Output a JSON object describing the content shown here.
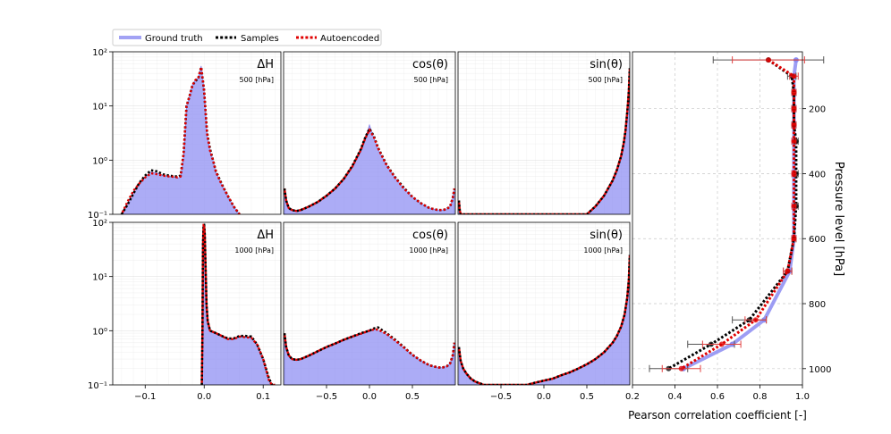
{
  "legend": {
    "placement": "top-left",
    "items": [
      {
        "label": "Ground truth",
        "color": "#8080f0",
        "style": "solid"
      },
      {
        "label": "Samples",
        "color": "#000000",
        "style": "dotted"
      },
      {
        "label": "Autoencoded",
        "color": "#e00000",
        "style": "dotted"
      }
    ]
  },
  "colors": {
    "ground_truth": "#8c8cf2",
    "samples": "#000000",
    "autoencoded": "#e00000",
    "grid": "#d9d9d9"
  },
  "chart_data": [
    {
      "type": "area",
      "panel": "r0c0",
      "label": "ΔH",
      "level_label": "500 [hPa]",
      "yscale": "log",
      "ylim": [
        0.1,
        100
      ],
      "xlim": [
        -0.155,
        0.13
      ],
      "xticks": [],
      "yticks": [
        {
          "v": 0.1,
          "t": "10⁻¹"
        },
        {
          "v": 1,
          "t": "10⁰"
        },
        {
          "v": 10,
          "t": "10¹"
        },
        {
          "v": 100,
          "t": "10²"
        }
      ],
      "x": [
        -0.14,
        -0.13,
        -0.12,
        -0.11,
        -0.1,
        -0.09,
        -0.08,
        -0.07,
        -0.06,
        -0.05,
        -0.045,
        -0.04,
        -0.035,
        -0.03,
        -0.025,
        -0.02,
        -0.015,
        -0.01,
        -0.005,
        0.0,
        0.005,
        0.01,
        0.015,
        0.02,
        0.03,
        0.04,
        0.05,
        0.06
      ],
      "ground_truth": [
        0.1,
        0.16,
        0.26,
        0.38,
        0.5,
        0.6,
        0.58,
        0.52,
        0.5,
        0.48,
        0.47,
        0.48,
        1.2,
        10,
        15,
        25,
        30,
        33,
        55,
        20,
        3,
        1.5,
        1.0,
        0.6,
        0.35,
        0.22,
        0.14,
        0.1
      ],
      "samples": [
        0.1,
        0.15,
        0.24,
        0.38,
        0.52,
        0.65,
        0.62,
        0.55,
        0.52,
        0.5,
        0.5,
        0.52,
        1.3,
        10,
        15,
        24,
        29,
        32,
        52,
        19,
        3.2,
        1.6,
        1.0,
        0.62,
        0.36,
        0.22,
        0.14,
        0.1
      ],
      "autoencoded": [
        0.1,
        0.17,
        0.27,
        0.37,
        0.48,
        0.57,
        0.55,
        0.52,
        0.5,
        0.49,
        0.48,
        0.5,
        1.3,
        10,
        15,
        24,
        30,
        33,
        52,
        19,
        3,
        1.5,
        1.0,
        0.6,
        0.35,
        0.22,
        0.14,
        0.1
      ]
    },
    {
      "type": "area",
      "panel": "r0c1",
      "label": "cos(θ)",
      "level_label": "500 [hPa]",
      "yscale": "log",
      "ylim": [
        0.1,
        100
      ],
      "xlim": [
        -1,
        1
      ],
      "xticks": [],
      "yticks": [],
      "x": [
        -0.99,
        -0.97,
        -0.94,
        -0.9,
        -0.85,
        -0.8,
        -0.7,
        -0.6,
        -0.5,
        -0.4,
        -0.3,
        -0.2,
        -0.1,
        -0.05,
        0.0,
        0.05,
        0.1,
        0.2,
        0.3,
        0.4,
        0.5,
        0.6,
        0.7,
        0.8,
        0.85,
        0.9,
        0.94,
        0.97,
        0.99
      ],
      "ground_truth": [
        0.28,
        0.17,
        0.13,
        0.12,
        0.115,
        0.12,
        0.14,
        0.17,
        0.22,
        0.3,
        0.45,
        0.75,
        1.5,
        2.5,
        4.5,
        2.6,
        1.6,
        0.8,
        0.47,
        0.3,
        0.21,
        0.16,
        0.13,
        0.12,
        0.12,
        0.125,
        0.14,
        0.2,
        0.3
      ],
      "samples": [
        0.3,
        0.18,
        0.13,
        0.12,
        0.115,
        0.12,
        0.14,
        0.17,
        0.22,
        0.3,
        0.45,
        0.78,
        1.6,
        2.6,
        3.8,
        2.8,
        1.7,
        0.82,
        0.48,
        0.31,
        0.21,
        0.16,
        0.13,
        0.12,
        0.12,
        0.125,
        0.14,
        0.2,
        0.3
      ],
      "autoencoded": [
        0.3,
        0.18,
        0.13,
        0.12,
        0.115,
        0.12,
        0.14,
        0.17,
        0.22,
        0.3,
        0.45,
        0.76,
        1.55,
        2.5,
        3.6,
        2.7,
        1.65,
        0.8,
        0.47,
        0.3,
        0.21,
        0.16,
        0.13,
        0.12,
        0.12,
        0.125,
        0.14,
        0.2,
        0.3
      ]
    },
    {
      "type": "area",
      "panel": "r0c2",
      "label": "sin(θ)",
      "level_label": "500 [hPa]",
      "yscale": "log",
      "ylim": [
        0.1,
        100
      ],
      "xlim": [
        -1,
        1
      ],
      "xticks": [],
      "yticks": [],
      "x": [
        -0.99,
        -0.98,
        -0.97,
        0.5,
        0.6,
        0.7,
        0.8,
        0.85,
        0.9,
        0.93,
        0.95,
        0.97,
        0.98,
        0.99,
        1.0
      ],
      "ground_truth": [
        0.18,
        0.12,
        0.1,
        0.1,
        0.14,
        0.22,
        0.42,
        0.66,
        1.2,
        2.1,
        3.5,
        7.5,
        12,
        20,
        50
      ],
      "samples": [
        0.18,
        0.12,
        0.1,
        0.1,
        0.14,
        0.22,
        0.42,
        0.66,
        1.2,
        2.1,
        3.5,
        7.5,
        12,
        20,
        50
      ],
      "autoencoded": [
        0.18,
        0.12,
        0.1,
        0.1,
        0.14,
        0.22,
        0.42,
        0.66,
        1.2,
        2.1,
        3.5,
        7.5,
        12,
        20,
        50
      ]
    },
    {
      "type": "area",
      "panel": "r1c0",
      "label": "ΔH",
      "level_label": "1000 [hPa]",
      "yscale": "log",
      "ylim": [
        0.1,
        100
      ],
      "xlim": [
        -0.155,
        0.13
      ],
      "xticks": [
        {
          "v": -0.1,
          "t": "−0.1"
        },
        {
          "v": 0.0,
          "t": "0.0"
        },
        {
          "v": 0.1,
          "t": "0.1"
        }
      ],
      "yticks": [
        {
          "v": 0.1,
          "t": "10⁻¹"
        },
        {
          "v": 1,
          "t": "10⁰"
        },
        {
          "v": 10,
          "t": "10¹"
        },
        {
          "v": 100,
          "t": "10²"
        }
      ],
      "x": [
        -0.004,
        -0.003,
        -0.002,
        -0.001,
        0.0,
        0.001,
        0.002,
        0.004,
        0.006,
        0.01,
        0.02,
        0.03,
        0.04,
        0.05,
        0.06,
        0.07,
        0.08,
        0.09,
        0.1,
        0.11,
        0.115,
        0.12
      ],
      "ground_truth": [
        0.1,
        1.0,
        40,
        90,
        90,
        60,
        20,
        3,
        1.5,
        1.0,
        0.9,
        0.8,
        0.7,
        0.7,
        0.8,
        0.75,
        0.75,
        0.55,
        0.3,
        0.12,
        0.1,
        0.1
      ],
      "samples": [
        0.1,
        0.9,
        40,
        90,
        90,
        60,
        20,
        3,
        1.5,
        1.0,
        0.9,
        0.8,
        0.72,
        0.72,
        0.8,
        0.8,
        0.78,
        0.55,
        0.3,
        0.13,
        0.1,
        0.1
      ],
      "autoencoded": [
        0.1,
        0.9,
        40,
        90,
        90,
        60,
        20,
        3,
        1.5,
        1.0,
        0.9,
        0.8,
        0.7,
        0.7,
        0.78,
        0.76,
        0.74,
        0.55,
        0.3,
        0.12,
        0.1,
        0.1
      ]
    },
    {
      "type": "area",
      "panel": "r1c1",
      "label": "cos(θ)",
      "level_label": "1000 [hPa]",
      "yscale": "log",
      "ylim": [
        0.1,
        100
      ],
      "xlim": [
        -1,
        1
      ],
      "xticks": [
        {
          "v": -0.5,
          "t": "−0.5"
        },
        {
          "v": 0.0,
          "t": "0.0"
        },
        {
          "v": 0.5,
          "t": "0.5"
        }
      ],
      "yticks": [],
      "x": [
        -0.99,
        -0.97,
        -0.94,
        -0.9,
        -0.85,
        -0.8,
        -0.7,
        -0.6,
        -0.5,
        -0.4,
        -0.3,
        -0.2,
        -0.1,
        0.0,
        0.05,
        0.1,
        0.2,
        0.3,
        0.4,
        0.5,
        0.6,
        0.7,
        0.8,
        0.85,
        0.9,
        0.94,
        0.97,
        0.99
      ],
      "ground_truth": [
        0.9,
        0.5,
        0.35,
        0.3,
        0.29,
        0.3,
        0.35,
        0.42,
        0.5,
        0.58,
        0.68,
        0.78,
        0.88,
        1.05,
        1.05,
        1.0,
        0.85,
        0.65,
        0.48,
        0.36,
        0.28,
        0.23,
        0.21,
        0.21,
        0.22,
        0.25,
        0.35,
        0.6
      ],
      "samples": [
        0.9,
        0.5,
        0.35,
        0.3,
        0.29,
        0.3,
        0.35,
        0.42,
        0.5,
        0.58,
        0.68,
        0.78,
        0.9,
        1.0,
        1.1,
        1.15,
        0.9,
        0.68,
        0.5,
        0.36,
        0.28,
        0.23,
        0.21,
        0.21,
        0.22,
        0.25,
        0.35,
        0.6
      ],
      "autoencoded": [
        0.9,
        0.5,
        0.35,
        0.3,
        0.29,
        0.3,
        0.35,
        0.42,
        0.5,
        0.58,
        0.68,
        0.78,
        0.88,
        1.0,
        1.05,
        1.05,
        0.87,
        0.66,
        0.49,
        0.36,
        0.28,
        0.23,
        0.21,
        0.21,
        0.22,
        0.25,
        0.35,
        0.6
      ]
    },
    {
      "type": "area",
      "panel": "r1c2",
      "label": "sin(θ)",
      "level_label": "1000 [hPa]",
      "yscale": "log",
      "ylim": [
        0.1,
        100
      ],
      "xlim": [
        -1,
        1
      ],
      "xticks": [
        {
          "v": -0.5,
          "t": "−0.5"
        },
        {
          "v": 0.0,
          "t": "0.0"
        },
        {
          "v": 0.5,
          "t": "0.5"
        }
      ],
      "yticks": [],
      "x": [
        -0.99,
        -0.97,
        -0.94,
        -0.9,
        -0.85,
        -0.8,
        -0.7,
        -0.6,
        -0.5,
        -0.4,
        -0.3,
        -0.2,
        -0.1,
        0.0,
        0.1,
        0.2,
        0.3,
        0.4,
        0.5,
        0.6,
        0.7,
        0.8,
        0.85,
        0.9,
        0.94,
        0.97,
        0.99,
        1.0
      ],
      "ground_truth": [
        0.5,
        0.28,
        0.2,
        0.16,
        0.13,
        0.115,
        0.1,
        0.1,
        0.1,
        0.1,
        0.1,
        0.1,
        0.11,
        0.12,
        0.13,
        0.15,
        0.17,
        0.2,
        0.24,
        0.3,
        0.4,
        0.6,
        0.8,
        1.2,
        2.0,
        4.0,
        9.0,
        25
      ],
      "samples": [
        0.5,
        0.28,
        0.2,
        0.16,
        0.13,
        0.115,
        0.1,
        0.1,
        0.1,
        0.1,
        0.1,
        0.1,
        0.11,
        0.12,
        0.13,
        0.15,
        0.17,
        0.2,
        0.24,
        0.3,
        0.4,
        0.6,
        0.8,
        1.2,
        2.0,
        4.0,
        9.0,
        25
      ],
      "autoencoded": [
        0.5,
        0.28,
        0.2,
        0.16,
        0.13,
        0.115,
        0.1,
        0.1,
        0.1,
        0.1,
        0.1,
        0.1,
        0.11,
        0.12,
        0.13,
        0.15,
        0.17,
        0.2,
        0.24,
        0.3,
        0.4,
        0.6,
        0.8,
        1.2,
        2.0,
        4.0,
        9.0,
        25
      ]
    },
    {
      "type": "line",
      "panel": "correlation",
      "xlabel": "Pearson correlation coefficient [-]",
      "ylabel": "Pressure level [hPa]",
      "xlim": [
        0.2,
        1.0
      ],
      "ylim": [
        1050,
        25
      ],
      "yaxis_side": "right",
      "xticks": [
        {
          "v": 0.2,
          "t": "0.2"
        },
        {
          "v": 0.4,
          "t": "0.4"
        },
        {
          "v": 0.6,
          "t": "0.6"
        },
        {
          "v": 0.8,
          "t": "0.8"
        },
        {
          "v": 1.0,
          "t": "1.0"
        }
      ],
      "yticks": [
        {
          "v": 200,
          "t": "200"
        },
        {
          "v": 400,
          "t": "400"
        },
        {
          "v": 600,
          "t": "600"
        },
        {
          "v": 800,
          "t": "800"
        },
        {
          "v": 1000,
          "t": "1000"
        }
      ],
      "pressure": [
        50,
        100,
        150,
        200,
        250,
        300,
        400,
        500,
        600,
        700,
        850,
        925,
        1000
      ],
      "ground_truth": [
        0.97,
        0.96,
        0.96,
        0.96,
        0.96,
        0.96,
        0.96,
        0.96,
        0.96,
        0.94,
        0.82,
        0.67,
        0.44
      ],
      "samples": {
        "values": [
          0.84,
          0.95,
          0.96,
          0.96,
          0.96,
          0.97,
          0.97,
          0.97,
          0.96,
          0.93,
          0.75,
          0.57,
          0.37
        ],
        "err": [
          0.26,
          0.02,
          0.01,
          0.01,
          0.01,
          0.01,
          0.01,
          0.01,
          0.01,
          0.02,
          0.08,
          0.11,
          0.09
        ]
      },
      "autoencoded": {
        "values": [
          0.84,
          0.96,
          0.96,
          0.96,
          0.96,
          0.96,
          0.96,
          0.96,
          0.96,
          0.93,
          0.78,
          0.62,
          0.43
        ],
        "err": [
          0.17,
          0.02,
          0.01,
          0.01,
          0.01,
          0.01,
          0.01,
          0.01,
          0.01,
          0.02,
          0.05,
          0.09,
          0.09
        ]
      }
    }
  ]
}
